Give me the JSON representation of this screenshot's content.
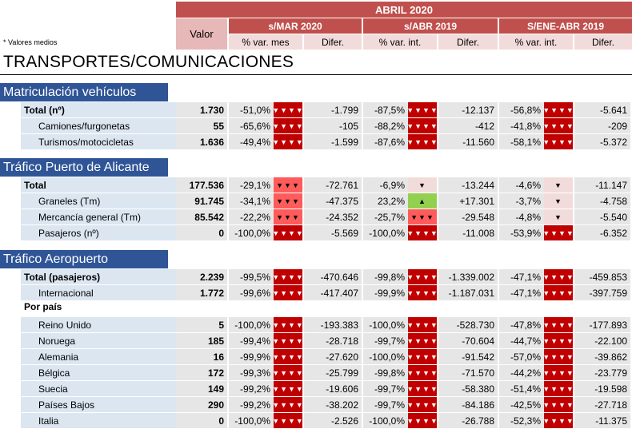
{
  "header": {
    "period": "ABRIL 2020",
    "valor_label": "Valor",
    "groups": [
      "s/MAR 2020",
      "s/ABR 2019",
      "S/ENE-ABR 2019"
    ],
    "sub": [
      "% var. mes",
      "Difer.",
      "% var. int.",
      "Difer.",
      "% var. int.",
      "Difer."
    ]
  },
  "note": "* Valores medios",
  "title": "TRANSPORTES/COMUNICACIONES",
  "colors": {
    "dark_red": "#c00000",
    "medium_red": "#ff5b5b",
    "light_red": "#f2dcdb",
    "green": "#92d050",
    "section_blue": "#2f5597"
  },
  "sections": [
    {
      "title": "Matriculación vehículos",
      "rows": [
        {
          "label": "Total (nº)",
          "valor": "1.730",
          "p1": "-51,0%",
          "i1": "▼▼▼▼",
          "d1": "-1.799",
          "p2": "-87,5%",
          "i2": "▼▼▼▼",
          "d2": "-12.137",
          "p3": "-56,8%",
          "i3": "▼▼▼▼",
          "d3": "-5.641"
        },
        {
          "label": "Camiones/furgonetas",
          "valor": "55",
          "p1": "-65,6%",
          "i1": "▼▼▼▼",
          "d1": "-105",
          "p2": "-88,2%",
          "i2": "▼▼▼▼",
          "d2": "-412",
          "p3": "-41,8%",
          "i3": "▼▼▼▼",
          "d3": "-209"
        },
        {
          "label": "Turismos/motocicletas",
          "valor": "1.636",
          "p1": "-49,4%",
          "i1": "▼▼▼▼",
          "d1": "-1.599",
          "p2": "-87,6%",
          "i2": "▼▼▼▼",
          "d2": "-11.560",
          "p3": "-58,1%",
          "i3": "▼▼▼▼",
          "d3": "-5.372"
        }
      ]
    },
    {
      "title": "Tráfico Puerto de Alicante",
      "rows": [
        {
          "label": "Total",
          "valor": "177.536",
          "p1": "-29,1%",
          "i1": "▼▼▼",
          "d1": "-72.761",
          "p2": "-6,9%",
          "i2": "▼",
          "d2": "-13.244",
          "p3": "-4,6%",
          "i3": "▼",
          "d3": "-11.147"
        },
        {
          "label": "Graneles (Tm)",
          "valor": "91.745",
          "p1": "-34,1%",
          "i1": "▼▼▼",
          "d1": "-47.375",
          "p2": "23,2%",
          "i2": "▲",
          "d2": "+17.301",
          "p3": "-3,7%",
          "i3": "▼",
          "d3": "-4.758"
        },
        {
          "label": "Mercancía general (Tm)",
          "valor": "85.542",
          "p1": "-22,2%",
          "i1": "▼▼▼",
          "d1": "-24.352",
          "p2": "-25,7%",
          "i2": "▼▼▼",
          "d2": "-29.548",
          "p3": "-4,8%",
          "i3": "▼",
          "d3": "-5.540"
        },
        {
          "label": "Pasajeros (nº)",
          "valor": "0",
          "p1": "-100,0%",
          "i1": "▼▼▼▼",
          "d1": "-5.569",
          "p2": "-100,0%",
          "i2": "▼▼▼▼",
          "d2": "-11.008",
          "p3": "-53,9%",
          "i3": "▼▼▼▼",
          "d3": "-6.352"
        }
      ]
    },
    {
      "title": "Tráfico Aeropuerto",
      "rows": [
        {
          "label": "Total (pasajeros)",
          "valor": "2.239",
          "p1": "-99,5%",
          "i1": "▼▼▼▼",
          "d1": "-470.646",
          "p2": "-99,8%",
          "i2": "▼▼▼▼",
          "d2": "-1.339.002",
          "p3": "-47,1%",
          "i3": "▼▼▼▼",
          "d3": "-459.853"
        },
        {
          "label": "Internacional",
          "valor": "1.772",
          "p1": "-99,6%",
          "i1": "▼▼▼▼",
          "d1": "-417.407",
          "p2": "-99,9%",
          "i2": "▼▼▼▼",
          "d2": "-1.187.031",
          "p3": "-47,1%",
          "i3": "▼▼▼▼",
          "d3": "-397.759"
        }
      ],
      "subhead": "Por país",
      "countries": [
        {
          "label": "Reino Unido",
          "valor": "5",
          "p1": "-100,0%",
          "i1": "▼▼▼▼",
          "d1": "-193.383",
          "p2": "-100,0%",
          "i2": "▼▼▼▼",
          "d2": "-528.730",
          "p3": "-47,8%",
          "i3": "▼▼▼▼",
          "d3": "-177.893"
        },
        {
          "label": "Noruega",
          "valor": "185",
          "p1": "-99,4%",
          "i1": "▼▼▼▼",
          "d1": "-28.718",
          "p2": "-99,7%",
          "i2": "▼▼▼▼",
          "d2": "-70.604",
          "p3": "-44,7%",
          "i3": "▼▼▼▼",
          "d3": "-22.100"
        },
        {
          "label": "Alemania",
          "valor": "16",
          "p1": "-99,9%",
          "i1": "▼▼▼▼",
          "d1": "-27.620",
          "p2": "-100,0%",
          "i2": "▼▼▼▼",
          "d2": "-91.542",
          "p3": "-57,0%",
          "i3": "▼▼▼▼",
          "d3": "-39.862"
        },
        {
          "label": "Bélgica",
          "valor": "172",
          "p1": "-99,3%",
          "i1": "▼▼▼▼",
          "d1": "-25.799",
          "p2": "-99,8%",
          "i2": "▼▼▼▼",
          "d2": "-71.570",
          "p3": "-44,2%",
          "i3": "▼▼▼▼",
          "d3": "-23.779"
        },
        {
          "label": "Suecia",
          "valor": "149",
          "p1": "-99,2%",
          "i1": "▼▼▼▼",
          "d1": "-19.606",
          "p2": "-99,7%",
          "i2": "▼▼▼▼",
          "d2": "-58.380",
          "p3": "-51,4%",
          "i3": "▼▼▼▼",
          "d3": "-19.598"
        },
        {
          "label": "Países Bajos",
          "valor": "290",
          "p1": "-99,2%",
          "i1": "▼▼▼▼",
          "d1": "-38.202",
          "p2": "-99,7%",
          "i2": "▼▼▼▼",
          "d2": "-84.186",
          "p3": "-42,5%",
          "i3": "▼▼▼▼",
          "d3": "-27.718"
        },
        {
          "label": "Italia",
          "valor": "0",
          "p1": "-100,0%",
          "i1": "▼▼▼▼",
          "d1": "-2.526",
          "p2": "-100,0%",
          "i2": "▼▼▼▼",
          "d2": "-26.788",
          "p3": "-52,3%",
          "i3": "▼▼▼▼",
          "d3": "-11.375"
        }
      ]
    }
  ]
}
